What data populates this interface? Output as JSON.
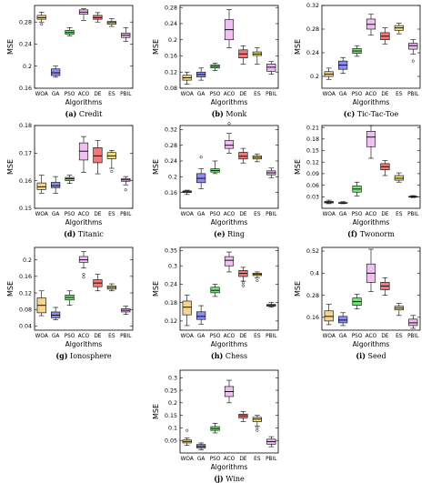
{
  "chart_data": [
    {
      "type": "box",
      "panel": "(a)",
      "caption": "Credit",
      "ylabel": "MSE",
      "xlabel": "Algorithms",
      "categories": [
        "WOA",
        "GA",
        "PSO",
        "ACO",
        "DE",
        "ES",
        "PBIL"
      ],
      "ylim": [
        0.16,
        0.31
      ],
      "yticks": [
        0.16,
        0.2,
        0.24,
        0.28
      ],
      "boxes": [
        {
          "min": 0.28,
          "q1": 0.285,
          "median": 0.288,
          "q3": 0.292,
          "max": 0.298,
          "outliers": [
            0.276
          ]
        },
        {
          "min": 0.18,
          "q1": 0.183,
          "median": 0.188,
          "q3": 0.195,
          "max": 0.2,
          "outliers": []
        },
        {
          "min": 0.255,
          "q1": 0.258,
          "median": 0.261,
          "q3": 0.265,
          "max": 0.27,
          "outliers": []
        },
        {
          "min": 0.283,
          "q1": 0.294,
          "median": 0.298,
          "q3": 0.302,
          "max": 0.304,
          "outliers": []
        },
        {
          "min": 0.28,
          "q1": 0.285,
          "median": 0.288,
          "q3": 0.292,
          "max": 0.297,
          "outliers": []
        },
        {
          "min": 0.272,
          "q1": 0.276,
          "median": 0.279,
          "q3": 0.281,
          "max": 0.286,
          "outliers": []
        },
        {
          "min": 0.245,
          "q1": 0.252,
          "median": 0.256,
          "q3": 0.26,
          "max": 0.27,
          "outliers": []
        }
      ]
    },
    {
      "type": "box",
      "panel": "(b)",
      "caption": "Monk",
      "ylabel": "MSE",
      "xlabel": "Algorithms",
      "categories": [
        "WOA",
        "GA",
        "PSO",
        "ACO",
        "DE",
        "ES",
        "PBIL"
      ],
      "ylim": [
        0.08,
        0.285
      ],
      "yticks": [
        0.08,
        0.12,
        0.16,
        0.2,
        0.24,
        0.28
      ],
      "boxes": [
        {
          "min": 0.09,
          "q1": 0.1,
          "median": 0.106,
          "q3": 0.112,
          "max": 0.12,
          "outliers": []
        },
        {
          "min": 0.1,
          "q1": 0.108,
          "median": 0.114,
          "q3": 0.12,
          "max": 0.13,
          "outliers": []
        },
        {
          "min": 0.124,
          "q1": 0.13,
          "median": 0.134,
          "q3": 0.138,
          "max": 0.142,
          "outliers": []
        },
        {
          "min": 0.18,
          "q1": 0.2,
          "median": 0.225,
          "q3": 0.25,
          "max": 0.275,
          "outliers": []
        },
        {
          "min": 0.14,
          "q1": 0.155,
          "median": 0.165,
          "q3": 0.175,
          "max": 0.185,
          "outliers": []
        },
        {
          "min": 0.14,
          "q1": 0.161,
          "median": 0.165,
          "q3": 0.17,
          "max": 0.18,
          "outliers": []
        },
        {
          "min": 0.115,
          "q1": 0.122,
          "median": 0.132,
          "q3": 0.14,
          "max": 0.146,
          "outliers": []
        }
      ]
    },
    {
      "type": "box",
      "panel": "(c)",
      "caption": "Tic-Tac-Toe",
      "ylabel": "MSE",
      "xlabel": "Algorithms",
      "categories": [
        "WOA",
        "GA",
        "PSO",
        "ACO",
        "DE",
        "ES",
        "PBIL"
      ],
      "ylim": [
        0.18,
        0.32
      ],
      "yticks": [
        0.2,
        0.24,
        0.28,
        0.32
      ],
      "boxes": [
        {
          "min": 0.195,
          "q1": 0.2,
          "median": 0.204,
          "q3": 0.208,
          "max": 0.214,
          "outliers": []
        },
        {
          "min": 0.205,
          "q1": 0.212,
          "median": 0.219,
          "q3": 0.226,
          "max": 0.232,
          "outliers": []
        },
        {
          "min": 0.234,
          "q1": 0.239,
          "median": 0.243,
          "q3": 0.247,
          "max": 0.252,
          "outliers": []
        },
        {
          "min": 0.27,
          "q1": 0.28,
          "median": 0.288,
          "q3": 0.297,
          "max": 0.305,
          "outliers": []
        },
        {
          "min": 0.255,
          "q1": 0.262,
          "median": 0.268,
          "q3": 0.274,
          "max": 0.282,
          "outliers": []
        },
        {
          "min": 0.272,
          "q1": 0.278,
          "median": 0.282,
          "q3": 0.286,
          "max": 0.29,
          "outliers": []
        },
        {
          "min": 0.238,
          "q1": 0.246,
          "median": 0.252,
          "q3": 0.256,
          "max": 0.262,
          "outliers": [
            0.226
          ]
        }
      ]
    },
    {
      "type": "box",
      "panel": "(d)",
      "caption": "Titanic",
      "ylabel": "MSE",
      "xlabel": "Algorithms",
      "categories": [
        "WOA",
        "GA",
        "PSO",
        "ACO",
        "DE",
        "ES",
        "PBIL"
      ],
      "ylim": [
        0.15,
        0.18
      ],
      "yticks": [
        0.15,
        0.16,
        0.17,
        0.18
      ],
      "boxes": [
        {
          "min": 0.1555,
          "q1": 0.1568,
          "median": 0.1578,
          "q3": 0.1592,
          "max": 0.162,
          "outliers": []
        },
        {
          "min": 0.1555,
          "q1": 0.1575,
          "median": 0.1582,
          "q3": 0.1594,
          "max": 0.1615,
          "outliers": []
        },
        {
          "min": 0.159,
          "q1": 0.16,
          "median": 0.1607,
          "q3": 0.1612,
          "max": 0.162,
          "outliers": []
        },
        {
          "min": 0.163,
          "q1": 0.1675,
          "median": 0.1707,
          "q3": 0.1737,
          "max": 0.176,
          "outliers": []
        },
        {
          "min": 0.1625,
          "q1": 0.1665,
          "median": 0.169,
          "q3": 0.172,
          "max": 0.1745,
          "outliers": []
        },
        {
          "min": 0.1645,
          "q1": 0.168,
          "median": 0.169,
          "q3": 0.1702,
          "max": 0.171,
          "outliers": [
            0.1634
          ]
        },
        {
          "min": 0.1585,
          "q1": 0.1598,
          "median": 0.1603,
          "q3": 0.1608,
          "max": 0.1615,
          "outliers": [
            0.1567
          ]
        }
      ]
    },
    {
      "type": "box",
      "panel": "(e)",
      "caption": "Ring",
      "ylabel": "MSE",
      "xlabel": "Algorithms",
      "categories": [
        "WOA",
        "GA",
        "PSO",
        "ACO",
        "DE",
        "ES",
        "PBIL"
      ],
      "ylim": [
        0.12,
        0.33
      ],
      "yticks": [
        0.16,
        0.2,
        0.24,
        0.28,
        0.32
      ],
      "boxes": [
        {
          "min": 0.155,
          "q1": 0.16,
          "median": 0.162,
          "q3": 0.164,
          "max": 0.166,
          "outliers": []
        },
        {
          "min": 0.17,
          "q1": 0.185,
          "median": 0.196,
          "q3": 0.208,
          "max": 0.22,
          "outliers": [
            0.25
          ]
        },
        {
          "min": 0.208,
          "q1": 0.212,
          "median": 0.216,
          "q3": 0.22,
          "max": 0.24,
          "outliers": []
        },
        {
          "min": 0.26,
          "q1": 0.272,
          "median": 0.28,
          "q3": 0.292,
          "max": 0.31,
          "outliers": [
            0.335
          ]
        },
        {
          "min": 0.235,
          "q1": 0.245,
          "median": 0.252,
          "q3": 0.262,
          "max": 0.272,
          "outliers": []
        },
        {
          "min": 0.238,
          "q1": 0.245,
          "median": 0.249,
          "q3": 0.253,
          "max": 0.258,
          "outliers": []
        },
        {
          "min": 0.198,
          "q1": 0.205,
          "median": 0.21,
          "q3": 0.215,
          "max": 0.222,
          "outliers": []
        }
      ]
    },
    {
      "type": "box",
      "panel": "(f)",
      "caption": "Twonorm",
      "ylabel": "MSE",
      "xlabel": "Algorithms",
      "categories": [
        "WOA",
        "GA",
        "PSO",
        "ACO",
        "DE",
        "ES",
        "PBIL"
      ],
      "ylim": [
        0.0,
        0.215
      ],
      "yticks": [
        0.03,
        0.06,
        0.09,
        0.12,
        0.15,
        0.18,
        0.21
      ],
      "boxes": [
        {
          "min": 0.012,
          "q1": 0.014,
          "median": 0.016,
          "q3": 0.018,
          "max": 0.021,
          "outliers": []
        },
        {
          "min": 0.012,
          "q1": 0.013,
          "median": 0.014,
          "q3": 0.015,
          "max": 0.017,
          "outliers": []
        },
        {
          "min": 0.032,
          "q1": 0.042,
          "median": 0.05,
          "q3": 0.058,
          "max": 0.068,
          "outliers": []
        },
        {
          "min": 0.13,
          "q1": 0.16,
          "median": 0.185,
          "q3": 0.2,
          "max": 0.215,
          "outliers": []
        },
        {
          "min": 0.085,
          "q1": 0.1,
          "median": 0.108,
          "q3": 0.116,
          "max": 0.124,
          "outliers": []
        },
        {
          "min": 0.068,
          "q1": 0.073,
          "median": 0.078,
          "q3": 0.085,
          "max": 0.092,
          "outliers": []
        },
        {
          "min": 0.028,
          "q1": 0.029,
          "median": 0.03,
          "q3": 0.031,
          "max": 0.033,
          "outliers": []
        }
      ]
    },
    {
      "type": "box",
      "panel": "(g)",
      "caption": "Ionosphere",
      "ylabel": "MSE",
      "xlabel": "Algorithms",
      "categories": [
        "WOA",
        "GA",
        "PSO",
        "ACO",
        "DE",
        "ES",
        "PBIL"
      ],
      "ylim": [
        0.03,
        0.23
      ],
      "yticks": [
        0.04,
        0.08,
        0.12,
        0.16,
        0.2
      ],
      "boxes": [
        {
          "min": 0.065,
          "q1": 0.072,
          "median": 0.09,
          "q3": 0.108,
          "max": 0.125,
          "outliers": []
        },
        {
          "min": 0.055,
          "q1": 0.06,
          "median": 0.066,
          "q3": 0.074,
          "max": 0.085,
          "outliers": []
        },
        {
          "min": 0.09,
          "q1": 0.103,
          "median": 0.109,
          "q3": 0.115,
          "max": 0.125,
          "outliers": []
        },
        {
          "min": 0.18,
          "q1": 0.194,
          "median": 0.2,
          "q3": 0.208,
          "max": 0.22,
          "outliers": [
            0.165,
            0.158
          ]
        },
        {
          "min": 0.125,
          "q1": 0.135,
          "median": 0.144,
          "q3": 0.152,
          "max": 0.165,
          "outliers": []
        },
        {
          "min": 0.125,
          "q1": 0.129,
          "median": 0.133,
          "q3": 0.137,
          "max": 0.142,
          "outliers": []
        },
        {
          "min": 0.068,
          "q1": 0.074,
          "median": 0.078,
          "q3": 0.082,
          "max": 0.088,
          "outliers": []
        }
      ]
    },
    {
      "type": "box",
      "panel": "(h)",
      "caption": "Chess",
      "ylabel": "MSE",
      "xlabel": "Algorithms",
      "categories": [
        "WOA",
        "GA",
        "PSO",
        "ACO",
        "DE",
        "ES",
        "PBIL"
      ],
      "ylim": [
        0.09,
        0.36
      ],
      "yticks": [
        0.12,
        0.18,
        0.24,
        0.3,
        0.35
      ],
      "boxes": [
        {
          "min": 0.105,
          "q1": 0.14,
          "median": 0.165,
          "q3": 0.185,
          "max": 0.205,
          "outliers": []
        },
        {
          "min": 0.11,
          "q1": 0.125,
          "median": 0.135,
          "q3": 0.15,
          "max": 0.17,
          "outliers": []
        },
        {
          "min": 0.2,
          "q1": 0.212,
          "median": 0.22,
          "q3": 0.23,
          "max": 0.24,
          "outliers": []
        },
        {
          "min": 0.28,
          "q1": 0.3,
          "median": 0.318,
          "q3": 0.33,
          "max": 0.345,
          "outliers": []
        },
        {
          "min": 0.25,
          "q1": 0.265,
          "median": 0.275,
          "q3": 0.285,
          "max": 0.295,
          "outliers": [
            0.245,
            0.235
          ]
        },
        {
          "min": 0.26,
          "q1": 0.268,
          "median": 0.272,
          "q3": 0.276,
          "max": 0.28,
          "outliers": [
            0.252
          ]
        },
        {
          "min": 0.165,
          "q1": 0.168,
          "median": 0.171,
          "q3": 0.174,
          "max": 0.18,
          "outliers": []
        }
      ]
    },
    {
      "type": "box",
      "panel": "(i)",
      "caption": "Seed",
      "ylabel": "MSE",
      "xlabel": "Algorithms",
      "categories": [
        "WOA",
        "GA",
        "PSO",
        "ACO",
        "DE",
        "ES",
        "PBIL"
      ],
      "ylim": [
        0.09,
        0.54
      ],
      "yticks": [
        0.16,
        0.28,
        0.4,
        0.52
      ],
      "boxes": [
        {
          "min": 0.12,
          "q1": 0.14,
          "median": 0.165,
          "q3": 0.195,
          "max": 0.23,
          "outliers": []
        },
        {
          "min": 0.115,
          "q1": 0.13,
          "median": 0.145,
          "q3": 0.165,
          "max": 0.185,
          "outliers": []
        },
        {
          "min": 0.205,
          "q1": 0.225,
          "median": 0.245,
          "q3": 0.265,
          "max": 0.285,
          "outliers": []
        },
        {
          "min": 0.3,
          "q1": 0.35,
          "median": 0.4,
          "q3": 0.45,
          "max": 0.53,
          "outliers": []
        },
        {
          "min": 0.28,
          "q1": 0.31,
          "median": 0.33,
          "q3": 0.35,
          "max": 0.375,
          "outliers": []
        },
        {
          "min": 0.17,
          "q1": 0.2,
          "median": 0.21,
          "q3": 0.22,
          "max": 0.235,
          "outliers": []
        },
        {
          "min": 0.1,
          "q1": 0.115,
          "median": 0.13,
          "q3": 0.15,
          "max": 0.17,
          "outliers": []
        }
      ]
    },
    {
      "type": "box",
      "panel": "(j)",
      "caption": "Wine",
      "ylabel": "MSE",
      "xlabel": "Algorithms",
      "categories": [
        "WOA",
        "GA",
        "PSO",
        "ACO",
        "DE",
        "ES",
        "PBIL"
      ],
      "ylim": [
        0.0,
        0.33
      ],
      "yticks": [
        0.05,
        0.1,
        0.15,
        0.2,
        0.25,
        0.3
      ],
      "boxes": [
        {
          "min": 0.03,
          "q1": 0.04,
          "median": 0.046,
          "q3": 0.052,
          "max": 0.06,
          "outliers": [
            0.09
          ]
        },
        {
          "min": 0.012,
          "q1": 0.02,
          "median": 0.026,
          "q3": 0.034,
          "max": 0.04,
          "outliers": []
        },
        {
          "min": 0.08,
          "q1": 0.09,
          "median": 0.097,
          "q3": 0.105,
          "max": 0.118,
          "outliers": []
        },
        {
          "min": 0.2,
          "q1": 0.225,
          "median": 0.245,
          "q3": 0.265,
          "max": 0.29,
          "outliers": []
        },
        {
          "min": 0.125,
          "q1": 0.14,
          "median": 0.148,
          "q3": 0.155,
          "max": 0.165,
          "outliers": []
        },
        {
          "min": 0.108,
          "q1": 0.125,
          "median": 0.135,
          "q3": 0.142,
          "max": 0.15,
          "outliers": [
            0.1,
            0.09
          ]
        },
        {
          "min": 0.025,
          "q1": 0.035,
          "median": 0.045,
          "q3": 0.055,
          "max": 0.065,
          "outliers": []
        }
      ]
    }
  ],
  "colors": {
    "WOA": "#f5d48e",
    "GA": "#8c8df2",
    "PSO": "#7fe07f",
    "ACO": "#f0c0f2",
    "DE": "#f07a7a",
    "ES": "#f2e27a",
    "PBIL": "#eab8ee"
  }
}
